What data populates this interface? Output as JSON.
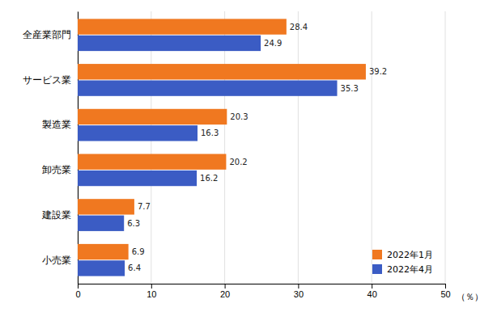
{
  "chart_data": {
    "type": "bar",
    "orientation": "horizontal",
    "categories": [
      "全産業部門",
      "サービス業",
      "製造業",
      "卸売業",
      "建設業",
      "小売業"
    ],
    "series": [
      {
        "name": "2022年1月",
        "color": "#F07820",
        "values": [
          28.4,
          39.2,
          20.3,
          20.2,
          7.7,
          6.9
        ]
      },
      {
        "name": "2022年4月",
        "color": "#3B5CC4",
        "values": [
          24.9,
          35.3,
          16.3,
          16.2,
          6.3,
          6.4
        ]
      }
    ],
    "xlabel": "（％）",
    "xlim": [
      0,
      50
    ],
    "xticks": [
      0,
      10,
      20,
      30,
      40,
      50
    ],
    "grid": true,
    "legend": "lower right",
    "data_labels": true
  }
}
